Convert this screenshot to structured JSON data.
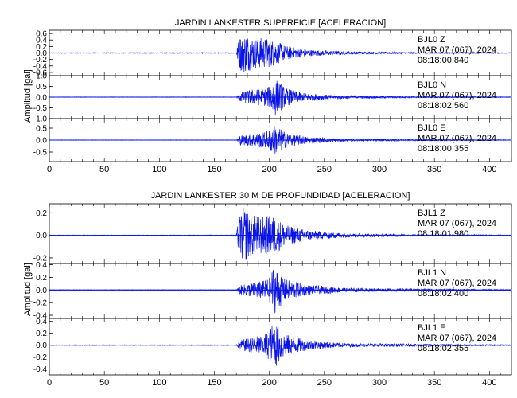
{
  "colors": {
    "trace": "#0a14e6",
    "axis": "#000000",
    "background": "#ffffff"
  },
  "chart_data": [
    {
      "type": "line",
      "title": "JARDIN LANKESTER SUPERFICIE [ACELERACION]",
      "ylabel": "Amplitud [gal]",
      "xlim": [
        0,
        420
      ],
      "xticks": [
        0,
        50,
        100,
        150,
        200,
        250,
        300,
        350,
        400
      ],
      "panels": [
        {
          "station": "BJL0",
          "component": "Z",
          "date": "MAR 07 (067), 2024",
          "time": "08:18:00.840",
          "ylim": [
            -0.7,
            0.7
          ],
          "yticks": [
            "0.6",
            "0.4",
            "0.2",
            "0.0",
            "-0.2",
            "-0.4",
            "-0.6"
          ],
          "noise": 0.012,
          "env": [
            [
              0,
              0.012
            ],
            [
              170,
              0.012
            ],
            [
              172,
              0.45
            ],
            [
              176,
              0.65
            ],
            [
              185,
              0.5
            ],
            [
              200,
              0.45
            ],
            [
              205,
              0.38
            ],
            [
              215,
              0.22
            ],
            [
              235,
              0.1
            ],
            [
              270,
              0.045
            ],
            [
              330,
              0.02
            ],
            [
              420,
              0.013
            ]
          ]
        },
        {
          "station": "BJL0",
          "component": "N",
          "date": "MAR 07 (067), 2024",
          "time": "08:18:02.560",
          "ylim": [
            -1.0,
            1.0
          ],
          "yticks": [
            "1.0",
            "0.5",
            "0.0",
            "-0.5",
            "-1.0"
          ],
          "noise": 0.012,
          "env": [
            [
              0,
              0.012
            ],
            [
              170,
              0.012
            ],
            [
              173,
              0.22
            ],
            [
              185,
              0.35
            ],
            [
              195,
              0.4
            ],
            [
              200,
              0.5
            ],
            [
              204,
              0.95
            ],
            [
              208,
              0.75
            ],
            [
              215,
              0.42
            ],
            [
              230,
              0.2
            ],
            [
              260,
              0.08
            ],
            [
              320,
              0.035
            ],
            [
              420,
              0.015
            ]
          ]
        },
        {
          "station": "BJL0",
          "component": "E",
          "date": "MAR 07 (067), 2024",
          "time": "08:18:00.355",
          "ylim": [
            -0.9,
            0.9
          ],
          "yticks": [
            "0.5",
            "0.0",
            "-0.5"
          ],
          "noise": 0.01,
          "env": [
            [
              0,
              0.01
            ],
            [
              170,
              0.01
            ],
            [
              173,
              0.2
            ],
            [
              185,
              0.28
            ],
            [
              195,
              0.35
            ],
            [
              200,
              0.45
            ],
            [
              204,
              0.65
            ],
            [
              208,
              0.55
            ],
            [
              215,
              0.32
            ],
            [
              235,
              0.14
            ],
            [
              270,
              0.05
            ],
            [
              420,
              0.012
            ]
          ]
        }
      ]
    },
    {
      "type": "line",
      "title": "JARDIN LANKESTER 30 M DE PROFUNDIDAD [ACELERACION]",
      "ylabel": "Amplitud [gal]",
      "xlim": [
        0,
        420
      ],
      "xticks": [
        0,
        50,
        100,
        150,
        200,
        250,
        300,
        350,
        400
      ],
      "panels": [
        {
          "station": "BJL1",
          "component": "Z",
          "date": "MAR 07 (067), 2024",
          "time": "08:18:01.980",
          "ylim": [
            -0.25,
            0.28
          ],
          "yticks": [
            "0.2",
            "0.0",
            "-0.2"
          ],
          "noise": 0.003,
          "env": [
            [
              0,
              0.003
            ],
            [
              170,
              0.003
            ],
            [
              172,
              0.15
            ],
            [
              176,
              0.25
            ],
            [
              185,
              0.18
            ],
            [
              195,
              0.17
            ],
            [
              202,
              0.18
            ],
            [
              207,
              0.15
            ],
            [
              215,
              0.09
            ],
            [
              235,
              0.045
            ],
            [
              270,
              0.018
            ],
            [
              330,
              0.008
            ],
            [
              420,
              0.004
            ]
          ]
        },
        {
          "station": "BJL1",
          "component": "N",
          "date": "MAR 07 (067), 2024",
          "time": "08:18:02.400",
          "ylim": [
            -0.45,
            0.42
          ],
          "yticks": [
            "0.4",
            "0.2",
            "0.0",
            "-0.2",
            "-0.4"
          ],
          "noise": 0.006,
          "env": [
            [
              0,
              0.006
            ],
            [
              170,
              0.006
            ],
            [
              173,
              0.07
            ],
            [
              185,
              0.12
            ],
            [
              195,
              0.15
            ],
            [
              200,
              0.2
            ],
            [
              204,
              0.4
            ],
            [
              208,
              0.3
            ],
            [
              215,
              0.17
            ],
            [
              235,
              0.08
            ],
            [
              270,
              0.03
            ],
            [
              420,
              0.008
            ]
          ]
        },
        {
          "station": "BJL1",
          "component": "E",
          "date": "MAR 07 (067), 2024",
          "time": "08:18:02.355",
          "ylim": [
            -0.5,
            0.45
          ],
          "yticks": [
            "0.4",
            "0.2",
            "0.0",
            "-0.2",
            "-0.4"
          ],
          "noise": 0.006,
          "env": [
            [
              0,
              0.006
            ],
            [
              170,
              0.006
            ],
            [
              173,
              0.08
            ],
            [
              185,
              0.14
            ],
            [
              195,
              0.18
            ],
            [
              200,
              0.25
            ],
            [
              204,
              0.42
            ],
            [
              208,
              0.32
            ],
            [
              215,
              0.18
            ],
            [
              235,
              0.08
            ],
            [
              270,
              0.03
            ],
            [
              420,
              0.008
            ]
          ]
        }
      ]
    }
  ]
}
